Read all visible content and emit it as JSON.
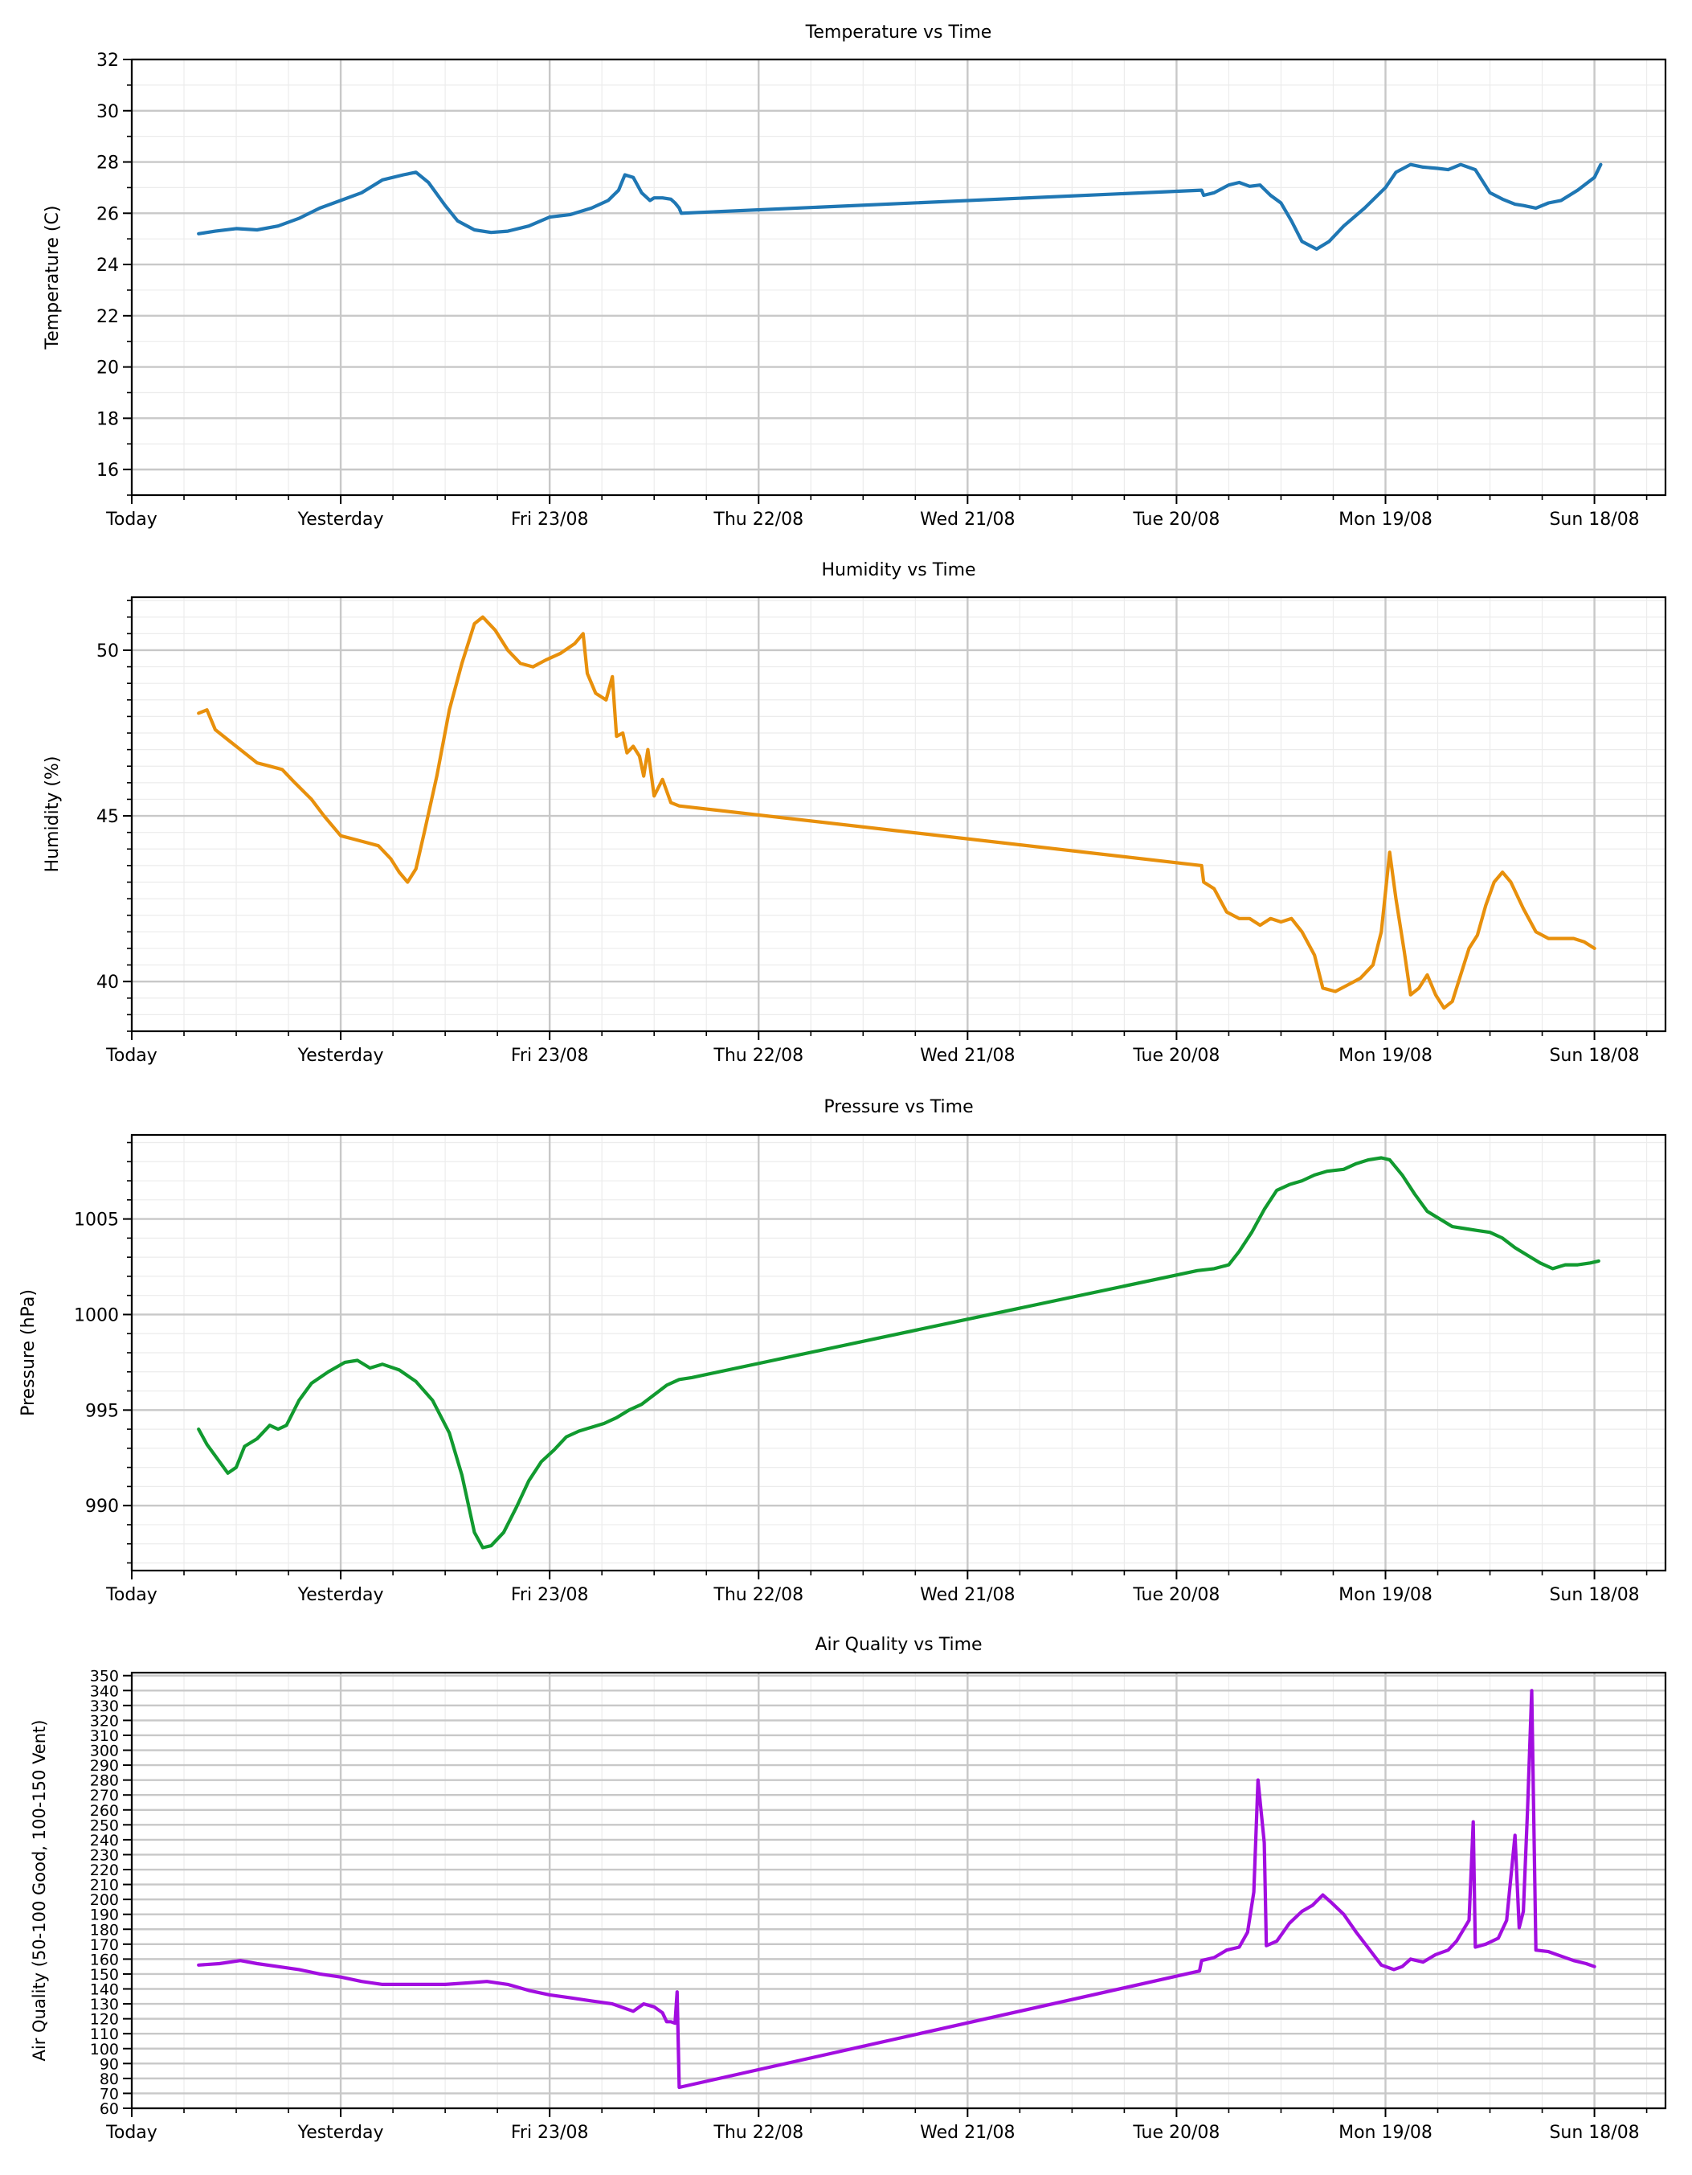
{
  "x_axis": {
    "tick_labels": [
      "Today",
      "Yesterday",
      "Fri 23/08",
      "Thu 22/08",
      "Wed 21/08",
      "Tue 20/08",
      "Mon 19/08",
      "Sun 18/08"
    ],
    "tick_days_ago": [
      0,
      1,
      2,
      3,
      4,
      5,
      6,
      7
    ],
    "range_days_ago": [
      0,
      7.34
    ]
  },
  "chart_data": [
    {
      "type": "line",
      "title": "Temperature vs Time",
      "ylabel": "Temperature (C)",
      "xlabel": "",
      "ylim": [
        15,
        32
      ],
      "yticks": [
        16,
        18,
        20,
        22,
        24,
        26,
        28,
        30,
        32
      ],
      "yminor_step": 1,
      "grid": true,
      "color": "#1f77b4",
      "points": [
        [
          0.32,
          25.2
        ],
        [
          0.4,
          25.3
        ],
        [
          0.5,
          25.4
        ],
        [
          0.6,
          25.35
        ],
        [
          0.7,
          25.5
        ],
        [
          0.8,
          25.8
        ],
        [
          0.9,
          26.2
        ],
        [
          1.0,
          26.5
        ],
        [
          1.1,
          26.8
        ],
        [
          1.2,
          27.3
        ],
        [
          1.3,
          27.5
        ],
        [
          1.36,
          27.6
        ],
        [
          1.42,
          27.2
        ],
        [
          1.5,
          26.3
        ],
        [
          1.56,
          25.7
        ],
        [
          1.64,
          25.35
        ],
        [
          1.72,
          25.25
        ],
        [
          1.8,
          25.3
        ],
        [
          1.9,
          25.5
        ],
        [
          2.0,
          25.85
        ],
        [
          2.1,
          25.95
        ],
        [
          2.2,
          26.2
        ],
        [
          2.28,
          26.5
        ],
        [
          2.33,
          26.9
        ],
        [
          2.36,
          27.5
        ],
        [
          2.4,
          27.4
        ],
        [
          2.44,
          26.8
        ],
        [
          2.48,
          26.5
        ],
        [
          2.5,
          26.6
        ],
        [
          2.54,
          26.6
        ],
        [
          2.58,
          26.55
        ],
        [
          2.6,
          26.4
        ],
        [
          2.62,
          26.2
        ],
        [
          2.63,
          26.0
        ],
        [
          5.12,
          26.9
        ],
        [
          5.13,
          26.7
        ],
        [
          5.18,
          26.8
        ],
        [
          5.25,
          27.1
        ],
        [
          5.3,
          27.2
        ],
        [
          5.35,
          27.05
        ],
        [
          5.4,
          27.1
        ],
        [
          5.45,
          26.7
        ],
        [
          5.5,
          26.4
        ],
        [
          5.55,
          25.7
        ],
        [
          5.6,
          24.9
        ],
        [
          5.67,
          24.6
        ],
        [
          5.73,
          24.9
        ],
        [
          5.8,
          25.5
        ],
        [
          5.9,
          26.2
        ],
        [
          6.0,
          27.0
        ],
        [
          6.05,
          27.6
        ],
        [
          6.12,
          27.9
        ],
        [
          6.18,
          27.8
        ],
        [
          6.25,
          27.75
        ],
        [
          6.3,
          27.7
        ],
        [
          6.36,
          27.9
        ],
        [
          6.43,
          27.7
        ],
        [
          6.5,
          26.8
        ],
        [
          6.56,
          26.55
        ],
        [
          6.62,
          26.35
        ],
        [
          6.66,
          26.3
        ],
        [
          6.72,
          26.2
        ],
        [
          6.78,
          26.4
        ],
        [
          6.84,
          26.5
        ],
        [
          6.92,
          26.9
        ],
        [
          7.0,
          27.4
        ],
        [
          7.03,
          27.9
        ]
      ]
    },
    {
      "type": "line",
      "title": "Humidity vs Time",
      "ylabel": "Humidity (%)",
      "xlabel": "",
      "ylim": [
        38.5,
        51.6
      ],
      "yticks": [
        40,
        45,
        50
      ],
      "yminor_step": 0.5,
      "grid": true,
      "color": "#e8900c",
      "points": [
        [
          0.32,
          48.1
        ],
        [
          0.36,
          48.2
        ],
        [
          0.4,
          47.6
        ],
        [
          0.46,
          47.3
        ],
        [
          0.52,
          47.0
        ],
        [
          0.6,
          46.6
        ],
        [
          0.66,
          46.5
        ],
        [
          0.72,
          46.4
        ],
        [
          0.78,
          46.0
        ],
        [
          0.86,
          45.5
        ],
        [
          0.92,
          45.0
        ],
        [
          1.0,
          44.4
        ],
        [
          1.06,
          44.3
        ],
        [
          1.12,
          44.2
        ],
        [
          1.18,
          44.1
        ],
        [
          1.24,
          43.7
        ],
        [
          1.28,
          43.3
        ],
        [
          1.32,
          43.0
        ],
        [
          1.36,
          43.4
        ],
        [
          1.4,
          44.5
        ],
        [
          1.46,
          46.2
        ],
        [
          1.52,
          48.2
        ],
        [
          1.58,
          49.6
        ],
        [
          1.64,
          50.8
        ],
        [
          1.68,
          51.0
        ],
        [
          1.74,
          50.6
        ],
        [
          1.8,
          50.0
        ],
        [
          1.86,
          49.6
        ],
        [
          1.92,
          49.5
        ],
        [
          1.98,
          49.7
        ],
        [
          2.05,
          49.9
        ],
        [
          2.12,
          50.2
        ],
        [
          2.16,
          50.5
        ],
        [
          2.18,
          49.3
        ],
        [
          2.22,
          48.7
        ],
        [
          2.27,
          48.5
        ],
        [
          2.3,
          49.2
        ],
        [
          2.32,
          47.4
        ],
        [
          2.35,
          47.5
        ],
        [
          2.37,
          46.9
        ],
        [
          2.4,
          47.1
        ],
        [
          2.43,
          46.8
        ],
        [
          2.45,
          46.2
        ],
        [
          2.47,
          47.0
        ],
        [
          2.5,
          45.6
        ],
        [
          2.54,
          46.1
        ],
        [
          2.58,
          45.4
        ],
        [
          2.62,
          45.3
        ],
        [
          5.12,
          43.5
        ],
        [
          5.13,
          43.0
        ],
        [
          5.18,
          42.8
        ],
        [
          5.24,
          42.1
        ],
        [
          5.3,
          41.9
        ],
        [
          5.35,
          41.9
        ],
        [
          5.4,
          41.7
        ],
        [
          5.45,
          41.9
        ],
        [
          5.5,
          41.8
        ],
        [
          5.55,
          41.9
        ],
        [
          5.6,
          41.5
        ],
        [
          5.66,
          40.8
        ],
        [
          5.7,
          39.8
        ],
        [
          5.76,
          39.7
        ],
        [
          5.82,
          39.9
        ],
        [
          5.88,
          40.1
        ],
        [
          5.94,
          40.5
        ],
        [
          5.98,
          41.5
        ],
        [
          6.02,
          43.9
        ],
        [
          6.05,
          42.5
        ],
        [
          6.09,
          40.9
        ],
        [
          6.12,
          39.6
        ],
        [
          6.16,
          39.8
        ],
        [
          6.2,
          40.2
        ],
        [
          6.24,
          39.6
        ],
        [
          6.28,
          39.2
        ],
        [
          6.32,
          39.4
        ],
        [
          6.36,
          40.2
        ],
        [
          6.4,
          41.0
        ],
        [
          6.44,
          41.4
        ],
        [
          6.48,
          42.3
        ],
        [
          6.52,
          43.0
        ],
        [
          6.56,
          43.3
        ],
        [
          6.6,
          43.0
        ],
        [
          6.66,
          42.2
        ],
        [
          6.72,
          41.5
        ],
        [
          6.78,
          41.3
        ],
        [
          6.84,
          41.3
        ],
        [
          6.9,
          41.3
        ],
        [
          6.95,
          41.2
        ],
        [
          7.0,
          41.0
        ]
      ]
    },
    {
      "type": "line",
      "title": "Pressure vs Time",
      "ylabel": "Pressure (hPa)",
      "xlabel": "",
      "ylim": [
        986.6,
        1009.4
      ],
      "yticks": [
        990,
        995,
        1000,
        1005
      ],
      "yminor_step": 1,
      "grid": true,
      "color": "#119a2f",
      "points": [
        [
          0.32,
          994.0
        ],
        [
          0.36,
          993.2
        ],
        [
          0.4,
          992.6
        ],
        [
          0.46,
          991.7
        ],
        [
          0.5,
          992.0
        ],
        [
          0.54,
          993.1
        ],
        [
          0.6,
          993.5
        ],
        [
          0.66,
          994.2
        ],
        [
          0.7,
          994.0
        ],
        [
          0.74,
          994.2
        ],
        [
          0.8,
          995.5
        ],
        [
          0.86,
          996.4
        ],
        [
          0.94,
          997.0
        ],
        [
          1.02,
          997.5
        ],
        [
          1.08,
          997.6
        ],
        [
          1.14,
          997.2
        ],
        [
          1.2,
          997.4
        ],
        [
          1.28,
          997.1
        ],
        [
          1.36,
          996.5
        ],
        [
          1.44,
          995.5
        ],
        [
          1.52,
          993.8
        ],
        [
          1.58,
          991.6
        ],
        [
          1.64,
          988.6
        ],
        [
          1.68,
          987.8
        ],
        [
          1.72,
          987.9
        ],
        [
          1.78,
          988.6
        ],
        [
          1.84,
          989.9
        ],
        [
          1.9,
          991.3
        ],
        [
          1.96,
          992.3
        ],
        [
          2.02,
          992.9
        ],
        [
          2.08,
          993.6
        ],
        [
          2.14,
          993.9
        ],
        [
          2.2,
          994.1
        ],
        [
          2.26,
          994.3
        ],
        [
          2.32,
          994.6
        ],
        [
          2.38,
          995.0
        ],
        [
          2.44,
          995.3
        ],
        [
          2.5,
          995.8
        ],
        [
          2.56,
          996.3
        ],
        [
          2.62,
          996.6
        ],
        [
          2.68,
          996.7
        ],
        [
          5.1,
          1002.3
        ],
        [
          5.18,
          1002.4
        ],
        [
          5.25,
          1002.6
        ],
        [
          5.3,
          1003.3
        ],
        [
          5.36,
          1004.3
        ],
        [
          5.42,
          1005.5
        ],
        [
          5.48,
          1006.5
        ],
        [
          5.54,
          1006.8
        ],
        [
          5.6,
          1007.0
        ],
        [
          5.66,
          1007.3
        ],
        [
          5.72,
          1007.5
        ],
        [
          5.8,
          1007.6
        ],
        [
          5.86,
          1007.9
        ],
        [
          5.92,
          1008.1
        ],
        [
          5.98,
          1008.2
        ],
        [
          6.02,
          1008.1
        ],
        [
          6.08,
          1007.3
        ],
        [
          6.14,
          1006.3
        ],
        [
          6.2,
          1005.4
        ],
        [
          6.26,
          1005.0
        ],
        [
          6.32,
          1004.6
        ],
        [
          6.38,
          1004.5
        ],
        [
          6.44,
          1004.4
        ],
        [
          6.5,
          1004.3
        ],
        [
          6.56,
          1004.0
        ],
        [
          6.62,
          1003.5
        ],
        [
          6.68,
          1003.1
        ],
        [
          6.74,
          1002.7
        ],
        [
          6.8,
          1002.4
        ],
        [
          6.86,
          1002.6
        ],
        [
          6.92,
          1002.6
        ],
        [
          6.98,
          1002.7
        ],
        [
          7.02,
          1002.8
        ]
      ]
    },
    {
      "type": "line",
      "title": "Air Quality vs Time",
      "ylabel": "Air Quality (50-100 Good, 100-150 Vent)",
      "xlabel": "",
      "ylim": [
        60,
        352
      ],
      "yticks": [
        60,
        70,
        80,
        90,
        100,
        110,
        120,
        130,
        140,
        150,
        160,
        170,
        180,
        190,
        200,
        210,
        220,
        230,
        240,
        250,
        260,
        270,
        280,
        290,
        300,
        310,
        320,
        330,
        340,
        350
      ],
      "yminor_step": 0,
      "grid": true,
      "color": "#a20ee0",
      "points": [
        [
          0.32,
          156
        ],
        [
          0.42,
          157
        ],
        [
          0.52,
          159
        ],
        [
          0.6,
          157
        ],
        [
          0.7,
          155
        ],
        [
          0.8,
          153
        ],
        [
          0.9,
          150
        ],
        [
          1.0,
          148
        ],
        [
          1.1,
          145
        ],
        [
          1.2,
          143
        ],
        [
          1.3,
          143
        ],
        [
          1.4,
          143
        ],
        [
          1.5,
          143
        ],
        [
          1.6,
          144
        ],
        [
          1.7,
          145
        ],
        [
          1.8,
          143
        ],
        [
          1.9,
          139
        ],
        [
          2.0,
          136
        ],
        [
          2.1,
          134
        ],
        [
          2.2,
          132
        ],
        [
          2.3,
          130
        ],
        [
          2.4,
          125
        ],
        [
          2.45,
          130
        ],
        [
          2.5,
          128
        ],
        [
          2.54,
          124
        ],
        [
          2.56,
          118
        ],
        [
          2.58,
          118
        ],
        [
          2.6,
          117
        ],
        [
          2.61,
          138
        ],
        [
          2.62,
          74
        ],
        [
          5.11,
          152
        ],
        [
          5.12,
          159
        ],
        [
          5.18,
          161
        ],
        [
          5.24,
          166
        ],
        [
          5.3,
          168
        ],
        [
          5.34,
          178
        ],
        [
          5.37,
          205
        ],
        [
          5.39,
          280
        ],
        [
          5.42,
          238
        ],
        [
          5.43,
          169
        ],
        [
          5.48,
          172
        ],
        [
          5.54,
          184
        ],
        [
          5.6,
          192
        ],
        [
          5.65,
          196
        ],
        [
          5.7,
          203
        ],
        [
          5.74,
          198
        ],
        [
          5.8,
          190
        ],
        [
          5.86,
          178
        ],
        [
          5.92,
          167
        ],
        [
          5.98,
          156
        ],
        [
          6.04,
          153
        ],
        [
          6.08,
          155
        ],
        [
          6.12,
          160
        ],
        [
          6.18,
          158
        ],
        [
          6.24,
          163
        ],
        [
          6.3,
          166
        ],
        [
          6.34,
          172
        ],
        [
          6.4,
          186
        ],
        [
          6.42,
          252
        ],
        [
          6.43,
          168
        ],
        [
          6.48,
          170
        ],
        [
          6.54,
          174
        ],
        [
          6.58,
          186
        ],
        [
          6.62,
          243
        ],
        [
          6.64,
          181
        ],
        [
          6.66,
          192
        ],
        [
          6.68,
          260
        ],
        [
          6.7,
          340
        ],
        [
          6.72,
          166
        ],
        [
          6.78,
          165
        ],
        [
          6.84,
          162
        ],
        [
          6.9,
          159
        ],
        [
          6.96,
          157
        ],
        [
          7.0,
          155
        ]
      ]
    }
  ]
}
